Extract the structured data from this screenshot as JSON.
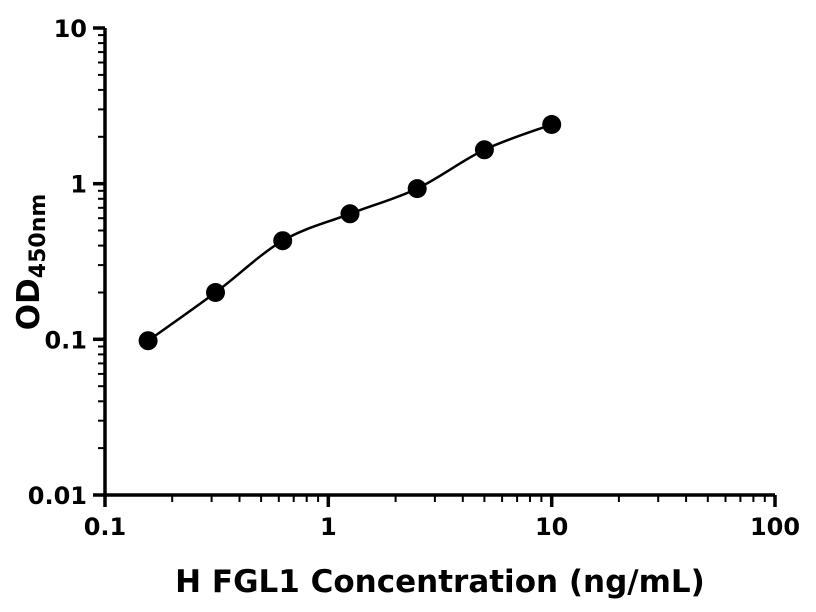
{
  "chart_data": {
    "type": "scatter",
    "xlabel": "H FGL1 Concentration (ng/mL)",
    "ylabel": "OD",
    "ylabel_subscript": "450nm",
    "x_scale": "log",
    "y_scale": "log",
    "xlim": [
      0.1,
      100
    ],
    "ylim": [
      0.01,
      10
    ],
    "x_tick_values": [
      0.1,
      1,
      10,
      100
    ],
    "x_tick_labels": [
      "0.1",
      "1",
      "10",
      "100"
    ],
    "y_tick_values": [
      0.01,
      0.1,
      1,
      10
    ],
    "y_tick_labels": [
      "0.01",
      "0.1",
      "1",
      "10"
    ],
    "grid": false,
    "legend": false,
    "marker": "filled-circle",
    "colors": {
      "marker": "#000000",
      "line": "#000000",
      "axis": "#000000",
      "background": "#ffffff"
    },
    "series": [
      {
        "x": [
          0.156,
          0.3125,
          0.625,
          1.25,
          2.5,
          5,
          10
        ],
        "y": [
          0.098,
          0.2,
          0.43,
          0.64,
          0.93,
          1.65,
          2.4
        ],
        "curve": "smooth"
      }
    ]
  }
}
